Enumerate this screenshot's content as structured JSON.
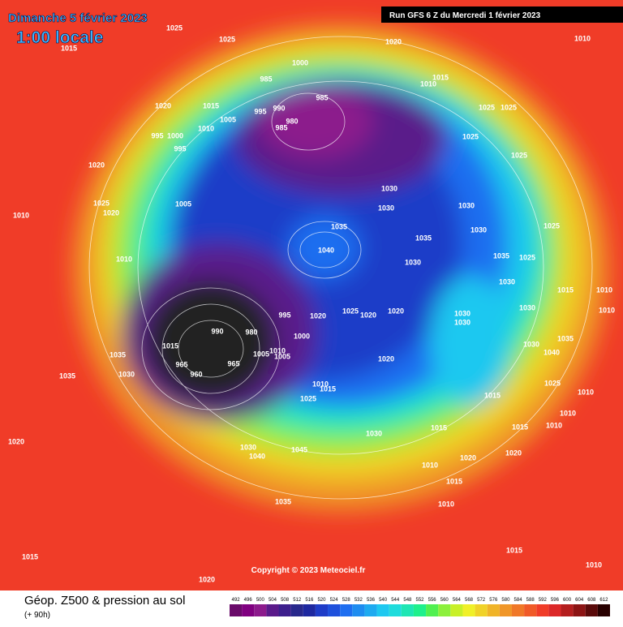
{
  "header": {
    "date": "Dimanche 5 février 2023",
    "time": "1:00 locale",
    "run": "Run GFS 6 Z du Mercredi 1 février 2023"
  },
  "map": {
    "isobar_labels": [
      "1025",
      "1025",
      "1015",
      "1020",
      "1010",
      "1000",
      "985",
      "1010",
      "1015",
      "985",
      "1020",
      "1015",
      "995",
      "990",
      "1025",
      "1025",
      "1005",
      "980",
      "985",
      "1010",
      "995",
      "1000",
      "1025",
      "995",
      "1025",
      "1020",
      "1030",
      "1005",
      "1025",
      "1020",
      "1030",
      "1030",
      "1010",
      "1035",
      "1025",
      "1030",
      "1035",
      "1040",
      "1010",
      "1035",
      "1025",
      "1030",
      "1030",
      "1015",
      "1010",
      "995",
      "1025",
      "1020",
      "1020",
      "1020",
      "1030",
      "1030",
      "1030",
      "1010",
      "990",
      "980",
      "1000",
      "1035",
      "1015",
      "1030",
      "1035",
      "1040",
      "1020",
      "965",
      "965",
      "1005",
      "1010",
      "1005",
      "960",
      "1030",
      "1035",
      "1010",
      "1015",
      "1025",
      "1015",
      "1010",
      "1025",
      "1010",
      "1010",
      "1015",
      "1015",
      "1030",
      "1020",
      "1030",
      "1045",
      "1040",
      "1020",
      "1020",
      "1010",
      "1015",
      "1010",
      "1035",
      "1015",
      "1015",
      "1010",
      "1020"
    ],
    "copyright": "Copyright © 2023 Meteociel.fr"
  },
  "legend": {
    "title": "Géop. Z500 & pression au sol",
    "subtitle": "(+ 90h)",
    "levels": [
      492,
      496,
      500,
      504,
      508,
      512,
      516,
      520,
      524,
      528,
      532,
      536,
      540,
      544,
      548,
      552,
      556,
      560,
      564,
      568,
      572,
      576,
      580,
      584,
      588,
      592,
      596,
      600,
      604,
      608,
      612
    ],
    "colors": [
      "#6a0a6a",
      "#800080",
      "#8c1a8c",
      "#5a1a8a",
      "#3c1e8c",
      "#28288c",
      "#1e28a0",
      "#1e3cc8",
      "#1e50dc",
      "#1e6ef0",
      "#1e8cf0",
      "#1eaaf0",
      "#1ec8f0",
      "#1edcdc",
      "#1ee6b4",
      "#1ef08c",
      "#50f050",
      "#8cf03c",
      "#c8f028",
      "#f0f028",
      "#f0d228",
      "#f0b428",
      "#f09628",
      "#f07828",
      "#f05a28",
      "#f03c28",
      "#dc2828",
      "#b41e1e",
      "#8c1414",
      "#5a0a0a",
      "#280000"
    ]
  }
}
